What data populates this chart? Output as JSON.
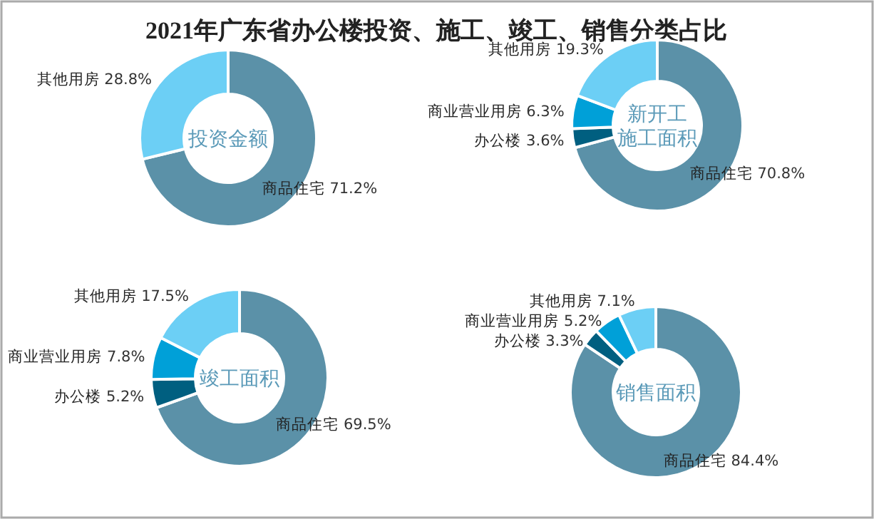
{
  "chart_data": [
    {
      "type": "donut",
      "title": "2021年广东省办公楼投资、施工、竣工、销售分类占比",
      "subtitle": "投资金额",
      "categories": [
        "商品住宅",
        "其他用房"
      ],
      "values": [
        71.2,
        28.8
      ],
      "colors": [
        "#5b91a8",
        "#6ccff5"
      ],
      "value_labels": [
        "71.2%",
        "28.8%"
      ]
    },
    {
      "type": "donut",
      "subtitle": "新开工施工面积",
      "categories": [
        "商品住宅",
        "办公楼",
        "商业营业用房",
        "其他用房"
      ],
      "values": [
        70.8,
        3.6,
        6.3,
        19.3
      ],
      "colors": [
        "#5b91a8",
        "#005f80",
        "#00a0d8",
        "#6ccff5"
      ],
      "value_labels": [
        "70.8%",
        "3.6%",
        "6.3%",
        "19.3%"
      ]
    },
    {
      "type": "donut",
      "subtitle": "竣工面积",
      "categories": [
        "商品住宅",
        "办公楼",
        "商业营业用房",
        "其他用房"
      ],
      "values": [
        69.5,
        5.2,
        7.8,
        17.5
      ],
      "colors": [
        "#5b91a8",
        "#005f80",
        "#00a0d8",
        "#6ccff5"
      ],
      "value_labels": [
        "69.5%",
        "5.2%",
        "7.8%",
        "17.5%"
      ]
    },
    {
      "type": "donut",
      "subtitle": "销售面积",
      "categories": [
        "商品住宅",
        "办公楼",
        "商业营业用房",
        "其他用房"
      ],
      "values": [
        84.4,
        3.3,
        5.2,
        7.1
      ],
      "colors": [
        "#5b91a8",
        "#005f80",
        "#00a0d8",
        "#6ccff5"
      ],
      "value_labels": [
        "84.4%",
        "3.3%",
        "5.2%",
        "7.1%"
      ]
    }
  ]
}
